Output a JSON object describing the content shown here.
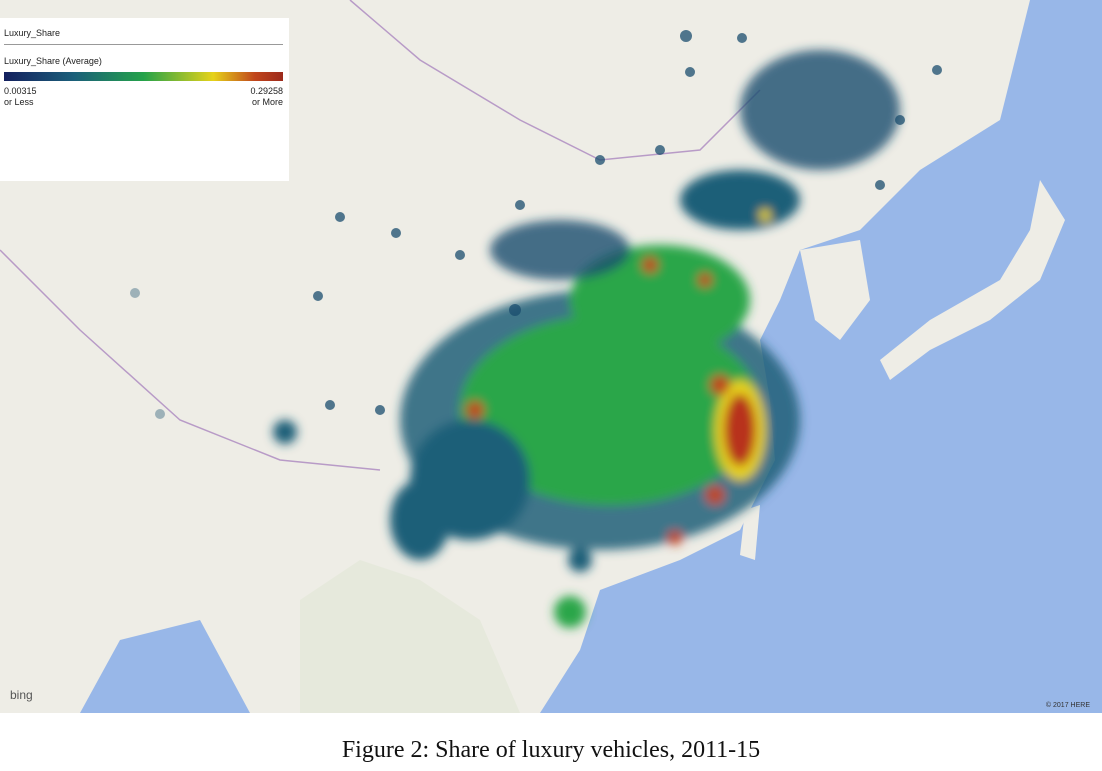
{
  "legend": {
    "title": "Luxury_Share",
    "field": "Luxury_Share (Average)",
    "min": "0.00315",
    "min_note": "or Less",
    "max": "0.29258",
    "max_note": "or More"
  },
  "map": {
    "provider": "bing",
    "copyright": "© 2017 HERE"
  },
  "caption": "Figure 2: Share of luxury vehicles, 2011-15"
}
